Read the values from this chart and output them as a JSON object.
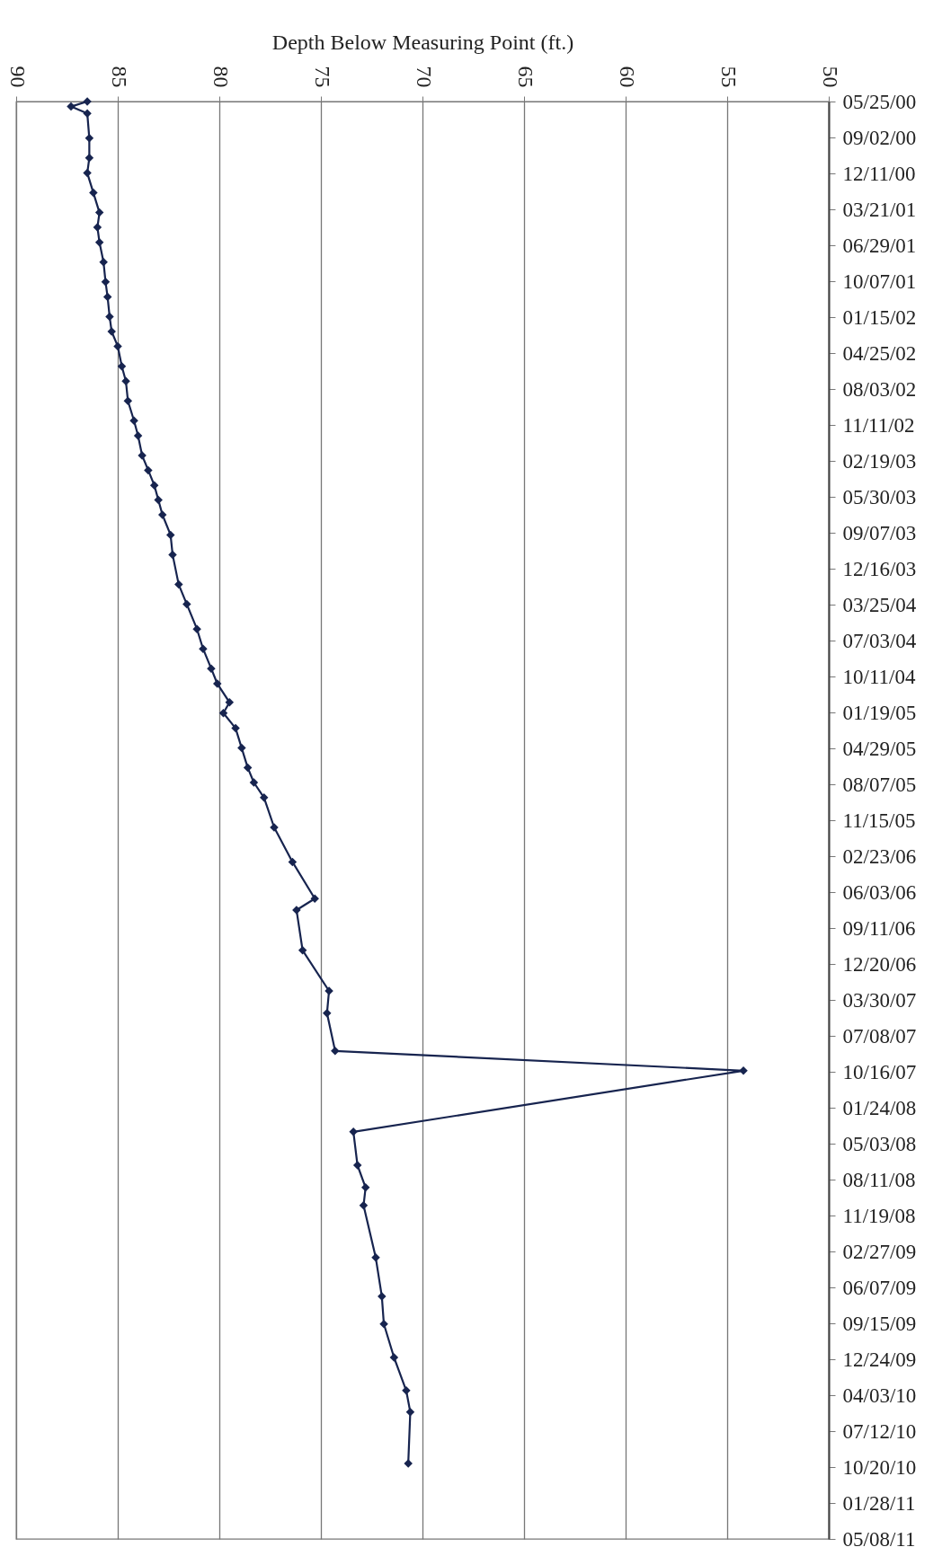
{
  "chart_data": {
    "type": "line",
    "orientation": "horizontal",
    "xlabel": "Depth Below Measuring Point (ft.)",
    "x": [
      "2000-05-25",
      "2000-06-08",
      "2000-06-27",
      "2000-09-04",
      "2000-10-29",
      "2000-12-10",
      "2001-02-03",
      "2001-03-30",
      "2001-05-10",
      "2001-06-21",
      "2001-08-15",
      "2001-10-09",
      "2001-11-20",
      "2002-01-14",
      "2002-02-24",
      "2002-04-06",
      "2002-06-01",
      "2002-07-12",
      "2002-09-05",
      "2002-10-30",
      "2002-12-11",
      "2003-02-04",
      "2003-03-17",
      "2003-04-28",
      "2003-06-08",
      "2003-07-19",
      "2003-09-13",
      "2003-11-07",
      "2004-01-29",
      "2004-03-24",
      "2004-06-01",
      "2004-07-26",
      "2004-09-19",
      "2004-10-31",
      "2004-12-22",
      "2005-01-21",
      "2005-03-04",
      "2005-04-28",
      "2005-06-22",
      "2005-08-02",
      "2005-09-13",
      "2005-12-05",
      "2006-03-11",
      "2006-06-21",
      "2006-07-23",
      "2006-11-12",
      "2007-03-05",
      "2007-05-06",
      "2007-08-19",
      "2007-10-13",
      "2008-03-31",
      "2008-07-02",
      "2008-09-02",
      "2008-10-22",
      "2009-03-16",
      "2009-07-02",
      "2009-09-17",
      "2009-12-19",
      "2010-03-21",
      "2010-05-20",
      "2010-10-10"
    ],
    "series": [
      {
        "color": "#17244f",
        "values": [
          86.5,
          87.3,
          86.5,
          86.4,
          86.4,
          86.5,
          86.2,
          85.9,
          86.0,
          85.9,
          85.7,
          85.6,
          85.5,
          85.4,
          85.3,
          85.0,
          84.8,
          84.6,
          84.5,
          84.2,
          84.0,
          83.8,
          83.5,
          83.2,
          83.0,
          82.8,
          82.4,
          82.3,
          82.0,
          81.6,
          81.1,
          80.8,
          80.4,
          80.1,
          79.5,
          79.8,
          79.2,
          78.9,
          78.6,
          78.3,
          77.8,
          77.3,
          76.4,
          75.3,
          76.2,
          75.9,
          74.6,
          74.7,
          74.3,
          54.2,
          73.4,
          73.2,
          72.8,
          72.9,
          72.3,
          72.0,
          71.9,
          71.4,
          70.8,
          70.6,
          70.7
        ]
      }
    ],
    "xlim": [
      90,
      50
    ],
    "xticks": [
      90,
      85,
      80,
      75,
      70,
      65,
      60,
      55,
      50
    ],
    "ylim": [
      "2011-05-08",
      "2000-05-25"
    ],
    "yticks": [
      {
        "value": "2000-05-25",
        "label": "05/25/00"
      },
      {
        "value": "2000-09-02",
        "label": "09/02/00"
      },
      {
        "value": "2000-12-11",
        "label": "12/11/00"
      },
      {
        "value": "2001-03-21",
        "label": "03/21/01"
      },
      {
        "value": "2001-06-29",
        "label": "06/29/01"
      },
      {
        "value": "2001-10-07",
        "label": "10/07/01"
      },
      {
        "value": "2002-01-15",
        "label": "01/15/02"
      },
      {
        "value": "2002-04-25",
        "label": "04/25/02"
      },
      {
        "value": "2002-08-03",
        "label": "08/03/02"
      },
      {
        "value": "2002-11-11",
        "label": "11/11/02"
      },
      {
        "value": "2003-02-19",
        "label": "02/19/03"
      },
      {
        "value": "2003-05-30",
        "label": "05/30/03"
      },
      {
        "value": "2003-09-07",
        "label": "09/07/03"
      },
      {
        "value": "2003-12-16",
        "label": "12/16/03"
      },
      {
        "value": "2004-03-25",
        "label": "03/25/04"
      },
      {
        "value": "2004-07-03",
        "label": "07/03/04"
      },
      {
        "value": "2004-10-11",
        "label": "10/11/04"
      },
      {
        "value": "2005-01-19",
        "label": "01/19/05"
      },
      {
        "value": "2005-04-29",
        "label": "04/29/05"
      },
      {
        "value": "2005-08-07",
        "label": "08/07/05"
      },
      {
        "value": "2005-11-15",
        "label": "11/15/05"
      },
      {
        "value": "2006-02-23",
        "label": "02/23/06"
      },
      {
        "value": "2006-06-03",
        "label": "06/03/06"
      },
      {
        "value": "2006-09-11",
        "label": "09/11/06"
      },
      {
        "value": "2006-12-20",
        "label": "12/20/06"
      },
      {
        "value": "2007-03-30",
        "label": "03/30/07"
      },
      {
        "value": "2007-07-08",
        "label": "07/08/07"
      },
      {
        "value": "2007-10-16",
        "label": "10/16/07"
      },
      {
        "value": "2008-01-24",
        "label": "01/24/08"
      },
      {
        "value": "2008-05-03",
        "label": "05/03/08"
      },
      {
        "value": "2008-08-11",
        "label": "08/11/08"
      },
      {
        "value": "2008-11-19",
        "label": "11/19/08"
      },
      {
        "value": "2009-02-27",
        "label": "02/27/09"
      },
      {
        "value": "2009-06-07",
        "label": "06/07/09"
      },
      {
        "value": "2009-09-15",
        "label": "09/15/09"
      },
      {
        "value": "2009-12-24",
        "label": "12/24/09"
      },
      {
        "value": "2010-04-03",
        "label": "04/03/10"
      },
      {
        "value": "2010-07-12",
        "label": "07/12/10"
      },
      {
        "value": "2010-10-20",
        "label": "10/20/10"
      },
      {
        "value": "2011-01-28",
        "label": "01/28/11"
      },
      {
        "value": "2011-05-08",
        "label": "05/08/11"
      }
    ],
    "grid": "x",
    "marker": "diamond",
    "line_style": "solid"
  }
}
